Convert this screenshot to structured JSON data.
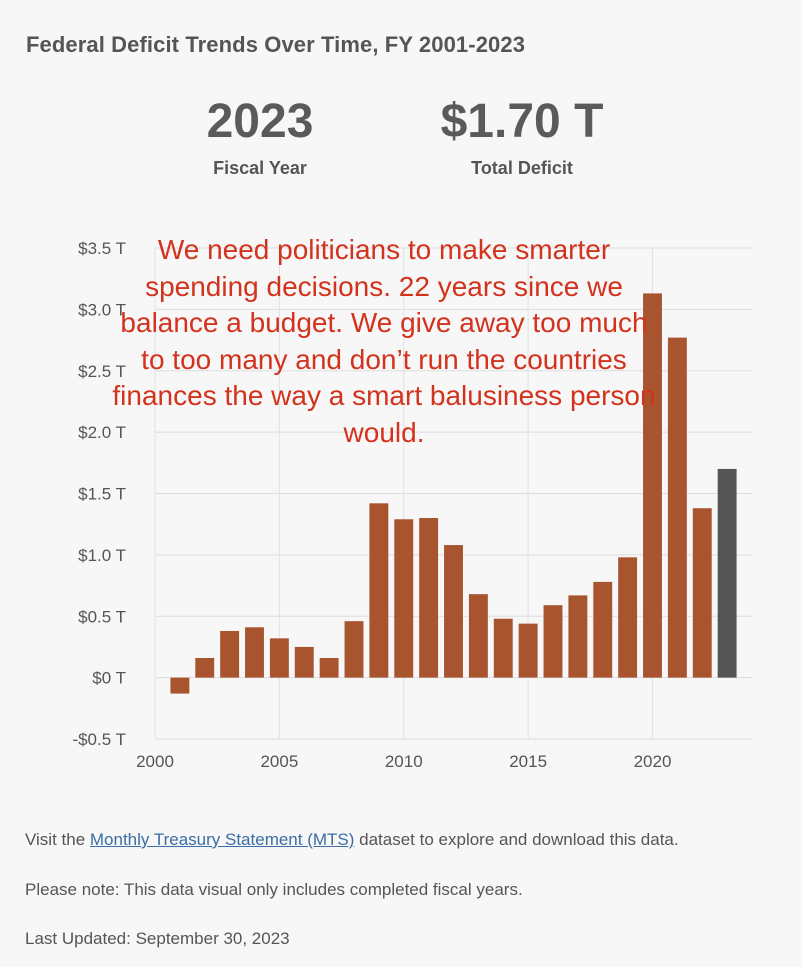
{
  "title": "Federal Deficit Trends Over Time, FY 2001-2023",
  "stats": {
    "year_value": "2023",
    "year_label": "Fiscal Year",
    "deficit_value": "$1.70 T",
    "deficit_label": "Total Deficit"
  },
  "annotation": {
    "text": "We need politicians to make smarter spending decisions. 22 years since we balance a budget. We give away too much to too many and don’t run the countries finances the way a smart balusiness person would.",
    "color": "#d3321c"
  },
  "chart_data": {
    "type": "bar",
    "title": "",
    "xlabel": "",
    "ylabel": "",
    "x": [
      2001,
      2002,
      2003,
      2004,
      2005,
      2006,
      2007,
      2008,
      2009,
      2010,
      2011,
      2012,
      2013,
      2014,
      2015,
      2016,
      2017,
      2018,
      2019,
      2020,
      2021,
      2022,
      2023
    ],
    "values": [
      -0.13,
      0.16,
      0.38,
      0.41,
      0.32,
      0.25,
      0.16,
      0.46,
      1.42,
      1.29,
      1.3,
      1.08,
      0.68,
      0.48,
      0.44,
      0.59,
      0.67,
      0.78,
      0.98,
      3.13,
      2.77,
      1.38,
      1.7
    ],
    "highlight": [
      2023
    ],
    "units": "T",
    "ylim": [
      -0.5,
      3.5
    ],
    "xlim": [
      2000,
      2024
    ],
    "yticks": [
      {
        "value": 3.5,
        "label": "$3.5 T"
      },
      {
        "value": 3.0,
        "label": "$3.0 T"
      },
      {
        "value": 2.5,
        "label": "$2.5 T"
      },
      {
        "value": 2.0,
        "label": "$2.0 T"
      },
      {
        "value": 1.5,
        "label": "$1.5 T"
      },
      {
        "value": 1.0,
        "label": "$1.0 T"
      },
      {
        "value": 0.5,
        "label": "$0.5 T"
      },
      {
        "value": 0.0,
        "label": "$0 T"
      },
      {
        "value": -0.5,
        "label": "-$0.5 T"
      }
    ],
    "xticks": [
      {
        "value": 2000,
        "label": "2000"
      },
      {
        "value": 2005,
        "label": "2005"
      },
      {
        "value": 2010,
        "label": "2010"
      },
      {
        "value": 2015,
        "label": "2015"
      },
      {
        "value": 2020,
        "label": "2020"
      }
    ],
    "grid": true,
    "bar_color": "#a8542f",
    "highlight_color": "#555555"
  },
  "footer": {
    "visit_prefix": "Visit the ",
    "link_text": "Monthly Treasury Statement (MTS)",
    "visit_suffix": " dataset to explore and download this data.",
    "note": "Please note: This data visual only includes completed fiscal years.",
    "updated": "Last Updated: September 30, 2023"
  }
}
